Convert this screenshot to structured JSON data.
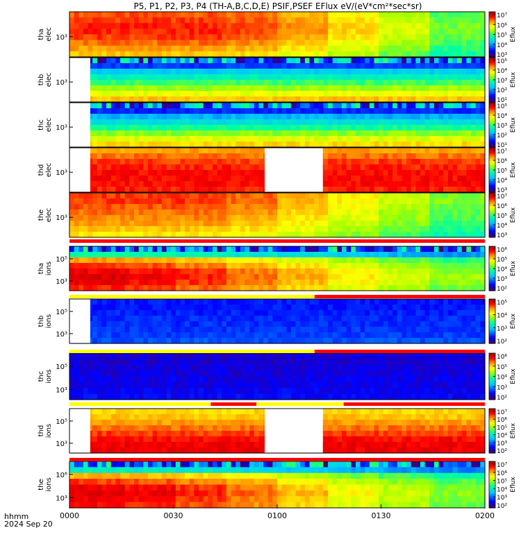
{
  "title": "P5, P1, P2, P3, P4 (TH-A,B,C,D,E) PSIF,PSEF EFlux eV/(eV*cm²*sec*sr)",
  "bottom_label": {
    "line1": "hhmm",
    "line2": "2024 Sep 20"
  },
  "colors": {
    "bar_yellow": "#ffff00",
    "bar_red": "#ff0000"
  },
  "chart_data": {
    "type": "heatmap",
    "x_ticks": [
      "0000",
      "0030",
      "0100",
      "0130",
      "0200"
    ],
    "xlim": [
      "0000",
      "0200"
    ],
    "colorbar_label": "Eflux",
    "panels": [
      {
        "probe": "tha",
        "species": "elec",
        "ylabel": [
          "tha",
          "elec"
        ],
        "y_ticks": [
          "10³"
        ],
        "cbar_ticks": [
          "10⁷",
          "10⁶",
          "10⁵",
          "10⁴",
          "10³"
        ],
        "gaps": [],
        "bands": [
          0.84,
          0.86,
          0.88,
          0.88,
          0.86,
          0.82,
          0.78,
          0.74
        ],
        "trend": [
          1.0,
          1.0,
          1.0,
          0.97,
          0.9,
          0.82,
          0.72,
          0.62
        ]
      },
      {
        "probe": "thb",
        "species": "elec",
        "ylabel": [
          "thb",
          "elec"
        ],
        "y_ticks": [
          "10³"
        ],
        "cbar_ticks": [
          "10⁵",
          "10⁴",
          "10³",
          "10²",
          "10¹"
        ],
        "gaps": [
          [
            0,
            5
          ]
        ],
        "bands": [
          0.02,
          0.18,
          0.34,
          0.42,
          0.5,
          0.58,
          0.66,
          0.74
        ],
        "trend": [
          1.0,
          1.0,
          1.0,
          1.0,
          1.0,
          1.0,
          1.0,
          1.0
        ]
      },
      {
        "probe": "thc",
        "species": "elec",
        "ylabel": [
          "thc",
          "elec"
        ],
        "y_ticks": [
          "10³"
        ],
        "cbar_ticks": [
          "10⁵",
          "10⁴",
          "10³",
          "10²",
          "10¹"
        ],
        "gaps": [
          [
            0,
            5
          ]
        ],
        "bands": [
          0.02,
          0.16,
          0.3,
          0.38,
          0.46,
          0.56,
          0.64,
          0.72
        ],
        "trend": [
          1.0,
          1.0,
          1.0,
          1.0,
          1.0,
          1.0,
          1.0,
          1.0
        ]
      },
      {
        "probe": "thd",
        "species": "elec",
        "ylabel": [
          "thd",
          "elec"
        ],
        "y_ticks": [
          "10³"
        ],
        "cbar_ticks": [
          "10⁷",
          "10⁶",
          "10⁵",
          "10⁴",
          "10³"
        ],
        "gaps": [
          [
            0,
            5
          ],
          [
            47,
            61
          ]
        ],
        "bands": [
          0.78,
          0.82,
          0.86,
          0.88,
          0.9,
          0.9,
          0.9,
          0.88
        ],
        "trend": [
          1.0,
          1.0,
          1.0,
          1.0,
          1.0,
          1.0,
          1.0,
          1.0
        ]
      },
      {
        "probe": "the",
        "species": "elec",
        "ylabel": [
          "the",
          "elec"
        ],
        "y_ticks": [
          "10³"
        ],
        "cbar_ticks": [
          "10⁷",
          "10⁶",
          "10⁵",
          "10⁴",
          "10³"
        ],
        "gaps": [],
        "bands": [
          0.86,
          0.86,
          0.84,
          0.82,
          0.8,
          0.78,
          0.74,
          0.7
        ],
        "trend": [
          1.0,
          1.0,
          1.0,
          0.96,
          0.88,
          0.8,
          0.72,
          0.64
        ]
      },
      {
        "probe": "tha",
        "species": "ions",
        "ylabel": [
          "tha",
          "ions"
        ],
        "y_ticks": [
          "10⁵",
          "10³"
        ],
        "cbar_ticks": [
          "10⁶",
          "10⁵",
          "10⁴",
          "10³",
          "10²"
        ],
        "gaps": [],
        "bands": [
          0.0,
          0.45,
          0.78,
          0.86,
          0.92,
          0.94,
          0.92,
          0.88
        ],
        "trend": [
          1.0,
          0.98,
          0.94,
          0.88,
          0.82,
          0.74,
          0.68,
          0.62
        ]
      },
      {
        "probe": "thb",
        "species": "ions",
        "ylabel": [
          "thb",
          "ions"
        ],
        "y_ticks": [
          "10⁵",
          "10³"
        ],
        "cbar_ticks": [
          "10⁵",
          "10⁴",
          "10³",
          "10²"
        ],
        "gaps": [
          [
            0,
            5
          ]
        ],
        "bands": [
          0.14,
          0.14,
          0.15,
          0.16,
          0.16,
          0.17,
          0.18,
          0.2
        ],
        "trend": [
          1.0,
          1.0,
          1.0,
          1.0,
          1.0,
          1.0,
          1.0,
          1.0
        ]
      },
      {
        "probe": "thc",
        "species": "ions",
        "ylabel": [
          "thc",
          "ions"
        ],
        "y_ticks": [
          "10⁵",
          "10³"
        ],
        "cbar_ticks": [
          "10⁶",
          "10⁵",
          "10⁴",
          "10³",
          "10²"
        ],
        "gaps": [],
        "bands": [
          0.08,
          0.08,
          0.09,
          0.09,
          0.1,
          0.1,
          0.11,
          0.12
        ],
        "trend": [
          1.0,
          1.0,
          1.0,
          1.0,
          1.0,
          1.0,
          1.0,
          1.0
        ]
      },
      {
        "probe": "thd",
        "species": "ions",
        "ylabel": [
          "thd",
          "ions"
        ],
        "y_ticks": [
          "10⁵",
          "10³"
        ],
        "cbar_ticks": [
          "10⁷",
          "10⁶",
          "10⁵",
          "10⁴",
          "10³",
          "10²"
        ],
        "gaps": [
          [
            0,
            5
          ],
          [
            47,
            61
          ]
        ],
        "bands": [
          0.72,
          0.74,
          0.78,
          0.82,
          0.86,
          0.9,
          0.92,
          0.92
        ],
        "trend": [
          1.0,
          1.0,
          1.0,
          1.0,
          1.0,
          1.0,
          1.0,
          1.0
        ]
      },
      {
        "probe": "the",
        "species": "ions",
        "ylabel": [
          "the",
          "ions"
        ],
        "y_ticks": [
          "10⁶",
          "10³"
        ],
        "cbar_ticks": [
          "10⁷",
          "10⁶",
          "10⁵",
          "10⁴",
          "10³",
          "10²"
        ],
        "gaps": [],
        "bands": [
          0.0,
          0.42,
          0.76,
          0.86,
          0.92,
          0.94,
          0.92,
          0.9
        ],
        "trend": [
          1.0,
          0.98,
          0.94,
          0.88,
          0.8,
          0.72,
          0.66,
          0.6
        ]
      }
    ],
    "region_bars": [
      {
        "after_panel": 4,
        "segments": [
          {
            "from": 0.0,
            "to": 1.0,
            "color": "red"
          }
        ]
      },
      {
        "after_panel": 5,
        "segments": [
          {
            "from": 0.0,
            "to": 0.59,
            "color": "yellow"
          },
          {
            "from": 0.59,
            "to": 1.0,
            "color": "red"
          }
        ]
      },
      {
        "after_panel": 6,
        "segments": [
          {
            "from": 0.0,
            "to": 0.59,
            "color": "yellow"
          },
          {
            "from": 0.59,
            "to": 1.0,
            "color": "red"
          }
        ]
      },
      {
        "after_panel": 7,
        "segments": [
          {
            "from": 0.0,
            "to": 0.34,
            "color": "yellow"
          },
          {
            "from": 0.34,
            "to": 0.45,
            "color": "red"
          },
          {
            "from": 0.45,
            "to": 0.66,
            "color": "yellow"
          },
          {
            "from": 0.66,
            "to": 1.0,
            "color": "red"
          }
        ]
      },
      {
        "after_panel": 8,
        "segments": [
          {
            "from": 0.0,
            "to": 1.0,
            "color": "red"
          }
        ]
      }
    ]
  }
}
